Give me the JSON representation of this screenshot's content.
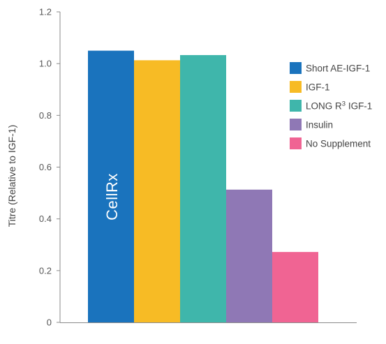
{
  "chart_data": {
    "type": "bar",
    "categories": [
      "Short AE-IGF-1",
      "IGF-1",
      "LONG R3 IGF-1",
      "Insulin",
      "No Supplement"
    ],
    "values": [
      1.05,
      1.013,
      1.033,
      0.513,
      0.272
    ],
    "colors": [
      "#1a73bd",
      "#f7bb25",
      "#3fb6ab",
      "#8f78b5",
      "#f06493"
    ],
    "ylabel": "Titre (Relative to IGF-1)",
    "xlabel": "",
    "ylim": [
      0,
      1.2
    ],
    "yticks": [
      "0",
      "0.2",
      "0.4",
      "0.6",
      "0.8",
      "1.0",
      "1.2"
    ],
    "grid": false,
    "legend": {
      "placement": "right",
      "entries": [
        {
          "label": "Short AE-IGF-1"
        },
        {
          "label": "IGF-1"
        },
        {
          "label": "LONG R",
          "sup": "3",
          "suffix": " IGF-1"
        },
        {
          "label": "Insulin"
        },
        {
          "label": "No Supplement"
        }
      ]
    },
    "watermark": "CellRx"
  }
}
